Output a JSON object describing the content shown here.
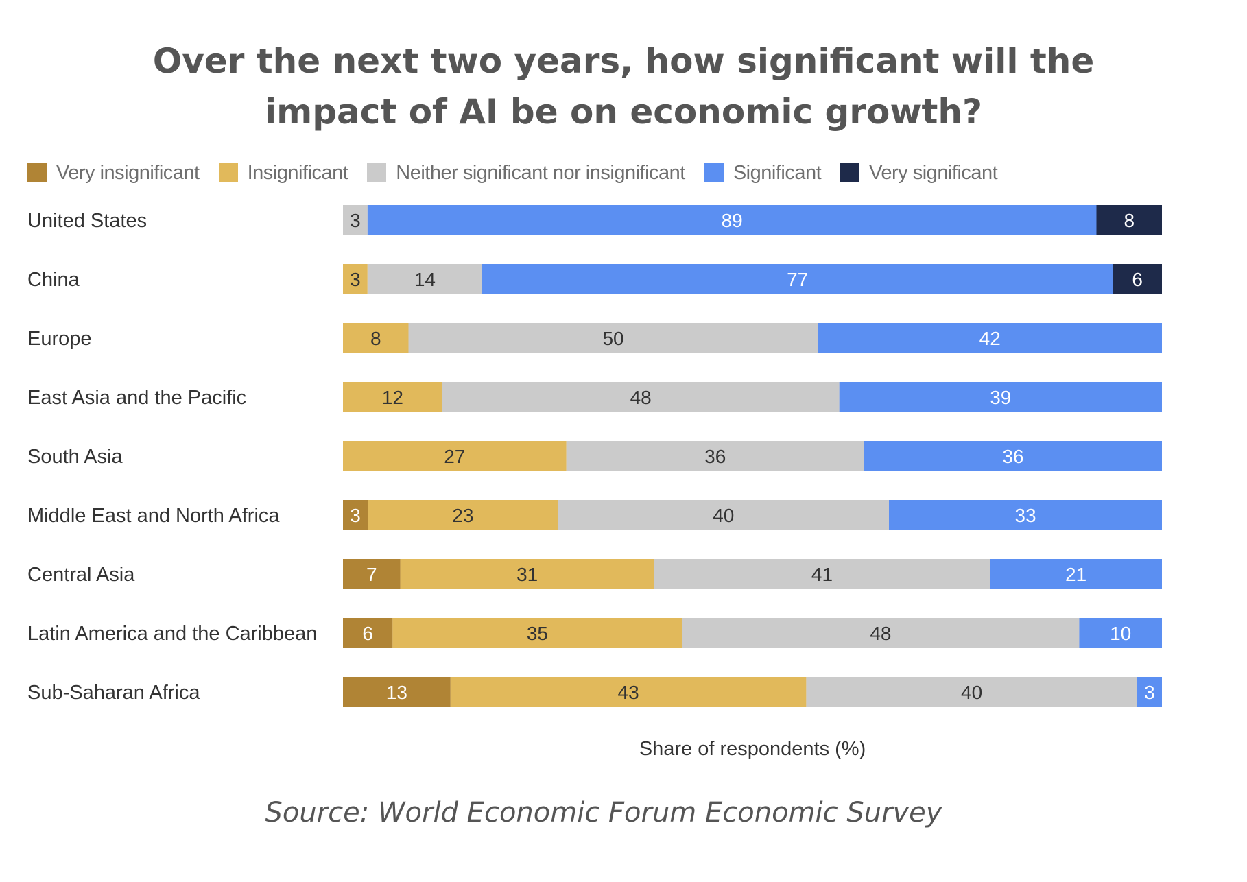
{
  "chart_data": {
    "type": "bar",
    "orientation": "horizontal",
    "stacked": true,
    "title_lines": [
      "Over the next two years, how significant will the",
      "impact of AI be on economic growth?"
    ],
    "xlabel": "Share of respondents (%)",
    "ylabel": "",
    "xlim": [
      0,
      100
    ],
    "grid": false,
    "legend_position": "top-left",
    "categories": [
      "United States",
      "China",
      "Europe",
      "East Asia and the Pacific",
      "South Asia",
      "Middle East and North Africa",
      "Central Asia",
      "Latin America and the Caribbean",
      "Sub-Saharan Africa"
    ],
    "series": [
      {
        "name": "Very insignificant",
        "color": "#b08435",
        "label_color": "#ffffff",
        "values": [
          0,
          0,
          0,
          0,
          0,
          3,
          7,
          6,
          13
        ]
      },
      {
        "name": "Insignificant",
        "color": "#e1b95b",
        "label_color": "#333333",
        "values": [
          0,
          3,
          8,
          12,
          27,
          23,
          31,
          35,
          43
        ]
      },
      {
        "name": "Neither significant nor insignificant",
        "color": "#cbcbcb",
        "label_color": "#333333",
        "values": [
          3,
          14,
          50,
          48,
          36,
          40,
          41,
          48,
          40
        ]
      },
      {
        "name": "Significant",
        "color": "#5b8ff2",
        "label_color": "#ffffff",
        "values": [
          89,
          77,
          42,
          39,
          36,
          33,
          21,
          10,
          3
        ]
      },
      {
        "name": "Very significant",
        "color": "#1e2a4a",
        "label_color": "#ffffff",
        "values": [
          8,
          6,
          0,
          0,
          0,
          0,
          0,
          0,
          0
        ]
      }
    ]
  },
  "source": "Source: World Economic Forum Economic Survey"
}
